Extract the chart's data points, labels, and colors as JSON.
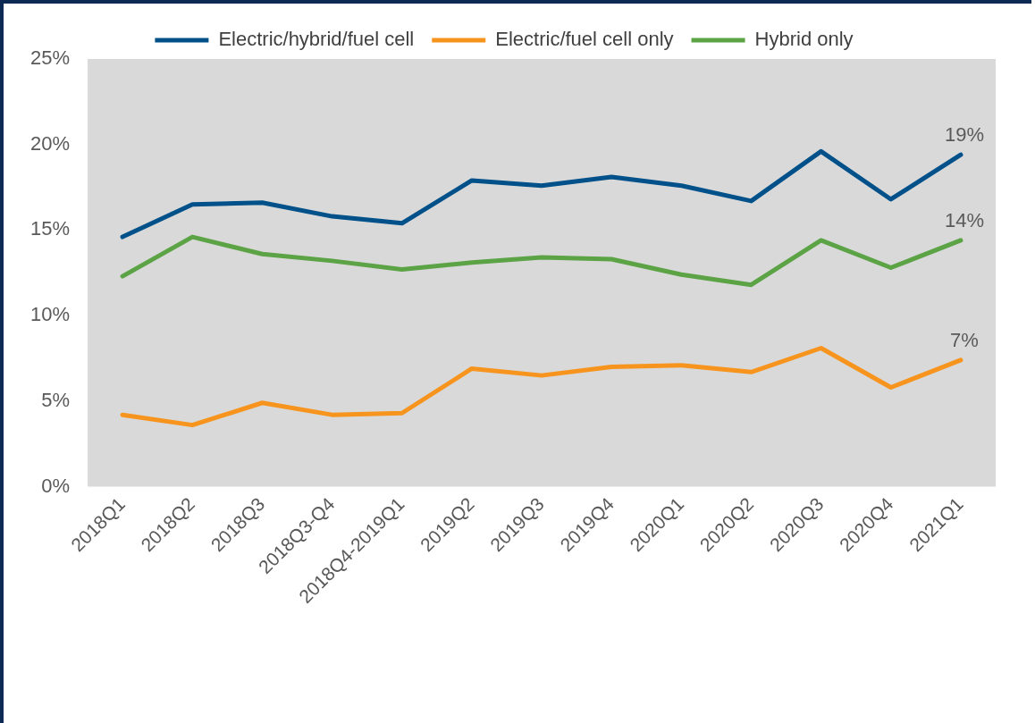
{
  "chart_data": {
    "type": "line",
    "categories": [
      "2018Q1",
      "2018Q2",
      "2018Q3",
      "2018Q3-Q4",
      "2018Q4-2019Q1",
      "2019Q2",
      "2019Q3",
      "2019Q4",
      "2020Q1",
      "2020Q2",
      "2020Q3",
      "2020Q4",
      "2021Q1"
    ],
    "series": [
      {
        "name": "Electric/hybrid/fuel cell",
        "color": "#00508a",
        "values": [
          14.6,
          16.5,
          16.6,
          15.8,
          15.4,
          17.9,
          17.6,
          18.1,
          17.6,
          16.7,
          19.6,
          16.8,
          19.4
        ],
        "value_labels": [
          null,
          null,
          null,
          null,
          null,
          null,
          null,
          null,
          null,
          null,
          null,
          null,
          "19%"
        ]
      },
      {
        "name": "Electric/fuel cell only",
        "color": "#f7941d",
        "values": [
          4.2,
          3.6,
          4.9,
          4.2,
          4.3,
          6.9,
          6.5,
          7.0,
          7.1,
          6.7,
          8.1,
          5.8,
          7.4
        ],
        "value_labels": [
          null,
          null,
          null,
          null,
          null,
          null,
          null,
          null,
          null,
          null,
          null,
          null,
          "7%"
        ]
      },
      {
        "name": "Hybrid only",
        "color": "#5ba345",
        "values": [
          12.3,
          14.6,
          13.6,
          13.2,
          12.7,
          13.1,
          13.4,
          13.3,
          12.4,
          11.8,
          14.4,
          12.8,
          14.4
        ],
        "value_labels": [
          null,
          null,
          null,
          null,
          null,
          null,
          null,
          null,
          null,
          null,
          null,
          null,
          "14%"
        ]
      }
    ],
    "ylim": [
      0,
      25
    ],
    "yticks": [
      {
        "value": 0,
        "label": "0%"
      },
      {
        "value": 5,
        "label": "5%"
      },
      {
        "value": 10,
        "label": "10%"
      },
      {
        "value": 15,
        "label": "15%"
      },
      {
        "value": 20,
        "label": "20%"
      },
      {
        "value": 25,
        "label": "25%"
      }
    ],
    "grid": false,
    "legend": "top",
    "marker": "none",
    "line_style": "solid"
  }
}
